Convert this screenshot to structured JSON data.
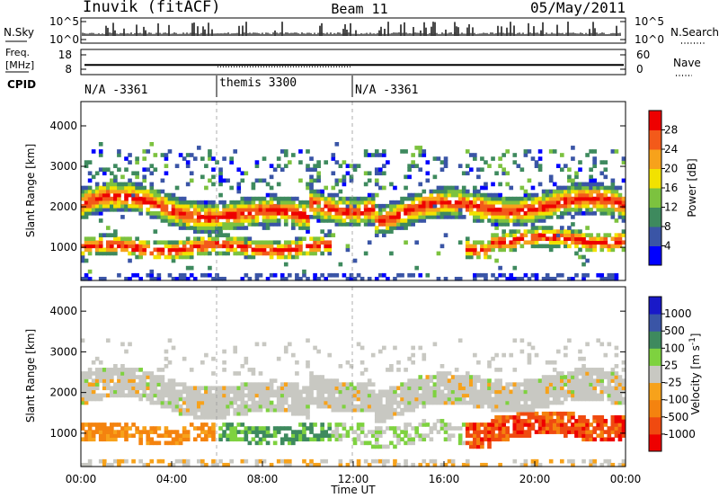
{
  "header": {
    "station": "Inuvik (fitACF)",
    "beam": "Beam 11",
    "date": "05/May/2011"
  },
  "noise_panel": {
    "left_label": "N.Sky",
    "right_label": "N.Search",
    "left_ticks": [
      "10^5",
      "10^0"
    ],
    "right_ticks": [
      "10^5",
      "10^0"
    ]
  },
  "freq_panel": {
    "left_label_line1": "Freq.",
    "left_label_line2": "[MHz]",
    "right_label": "Nave",
    "left_ticks": [
      "18",
      "8"
    ],
    "right_ticks": [
      "60",
      "0"
    ],
    "freq_value": 11.0,
    "nave_value": 25
  },
  "cpid_panel": {
    "label": "CPID",
    "segments": [
      {
        "label": "N/A -3361",
        "start_hour": 0,
        "end_hour": 6
      },
      {
        "label": "themis 3300",
        "start_hour": 6,
        "end_hour": 12
      },
      {
        "label": "N/A -3361",
        "start_hour": 12,
        "end_hour": 24
      }
    ]
  },
  "colors": {
    "power": [
      "#0000ff",
      "#3a55a6",
      "#3e8a5e",
      "#7cc23f",
      "#f2e200",
      "#f7a21b",
      "#f35a1a",
      "#ee0000"
    ],
    "velocity": [
      "#ee0000",
      "#f04a10",
      "#f4830f",
      "#f7a21b",
      "#c8c8c2",
      "#7ed23f",
      "#3e8a5e",
      "#3a55a6",
      "#1919c8"
    ]
  },
  "chart_data": [
    {
      "type": "heatmap",
      "name": "power",
      "xlabel": "",
      "ylabel": "Slant Range [km]",
      "xlim": [
        0,
        24
      ],
      "ylim": [
        180,
        4600
      ],
      "yticks": [
        1000,
        2000,
        3000,
        4000
      ],
      "colorbar": {
        "label": "Power [dB]",
        "range": [
          0,
          32
        ],
        "tick_labels": [
          "4",
          "8",
          "12",
          "16",
          "20",
          "24",
          "28"
        ]
      },
      "features": [
        {
          "band": "F-region",
          "range_km": [
            1500,
            2400
          ],
          "hours": [
            0,
            24
          ],
          "peak_dB": 30
        },
        {
          "band": "E-region",
          "range_km": [
            700,
            1200
          ],
          "hours": [
            0,
            24
          ],
          "peak_dB": 30
        }
      ]
    },
    {
      "type": "heatmap",
      "name": "velocity",
      "xlabel": "Time UT",
      "ylabel": "Slant Range [km]",
      "xlim": [
        0,
        24
      ],
      "ylim": [
        180,
        4600
      ],
      "yticks": [
        1000,
        2000,
        3000,
        4000
      ],
      "colorbar": {
        "label": "Velocity [m s-1]",
        "range": [
          -1250,
          1250
        ],
        "tick_labels": [
          "1000",
          "500",
          "100",
          "25",
          "-25",
          "-100",
          "-500",
          "-1000"
        ]
      },
      "features": [
        {
          "band": "ground scatter",
          "range_km": [
            1600,
            2600
          ],
          "hours": [
            0,
            18
          ],
          "velocity_ms": 0
        },
        {
          "band": "E-region flow",
          "range_km": [
            700,
            1400
          ],
          "hours": [
            17,
            24
          ],
          "velocity_ms": -600
        }
      ]
    }
  ],
  "x_axis": {
    "label": "Time UT",
    "tick_labels": [
      "00:00",
      "04:00",
      "08:00",
      "12:00",
      "16:00",
      "20:00",
      "00:00"
    ]
  }
}
